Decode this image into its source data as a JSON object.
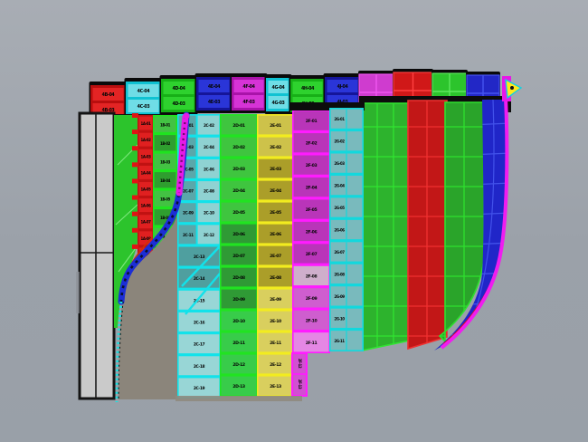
{
  "viewport": {
    "background_top": "#a8adb4",
    "background_bottom": "#99a0a8",
    "description": "3D CAD viewport showing a curved hull surface split into colored plate strips with panel ID labels"
  },
  "colors": {
    "red": "#e01515",
    "red_dark": "#c01212",
    "cyan_border": "#12e2ea",
    "cyan_cell": "#8fd2d2",
    "teal_cell": "#5aa7aa",
    "green_border": "#21e321",
    "green_cell": "#3fc53f",
    "green_dark": "#2f9a35",
    "blue": "#2026c8",
    "blue_line": "#4252ea",
    "magenta": "#ff1cff",
    "magenta_cell": "#b935b9",
    "yellow_border": "#f2ec1f",
    "yellow_cell": "#cdc24a",
    "olive_cell": "#ab9e29",
    "slab_fill": "#cacaca",
    "shadow_fill": "#8b857b",
    "cap_black": "#0a0a0a",
    "curve_blue": "#1c2ed6",
    "curve_magenta": "#e61ae6",
    "edge_cyan": "#19e2e2",
    "flag_yellow": "#ffe81a"
  },
  "top_band": {
    "panels": [
      {
        "color": "red",
        "labels": [
          "4B-04",
          "4B-03"
        ]
      },
      {
        "color": "cyan",
        "labels": [
          "4C-04",
          "4C-03"
        ]
      },
      {
        "color": "green",
        "labels": [
          "4D-04",
          "4D-03"
        ]
      },
      {
        "color": "blue",
        "labels": [
          "4E-04",
          "4E-03"
        ]
      },
      {
        "color": "magenta",
        "labels": [
          "4F-04",
          "4F-03"
        ]
      },
      {
        "color": "cyan",
        "labels": [
          "4G-04",
          "4G-03"
        ]
      },
      {
        "color": "green",
        "labels": [
          "4H-04",
          "4H-03"
        ]
      },
      {
        "color": "blue",
        "labels": [
          "4J-04",
          "4J-03"
        ]
      }
    ],
    "grid_panels": [
      "magenta",
      "red",
      "green",
      "blue"
    ]
  },
  "strips": {
    "red": {
      "labels": [
        "1A-01",
        "1A-02",
        "1A-03",
        "1A-04",
        "1A-05",
        "1A-06",
        "1A-07",
        "1A-08",
        "1A-09"
      ]
    },
    "green_left": {
      "labels": [
        "1B-01",
        "1B-02",
        "1B-03",
        "1B-04",
        "1B-05",
        "1B-06",
        "1B-07",
        "1B-08",
        "1B-09",
        "1B-10"
      ]
    },
    "cyan": {
      "labels": [
        "2C-01",
        "2C-02",
        "2C-03",
        "2C-04",
        "2C-05",
        "2C-06",
        "2C-07",
        "2C-08",
        "2C-09",
        "2C-10",
        "2C-11",
        "2C-12",
        "2C-13",
        "2C-14",
        "2C-15",
        "2C-16",
        "2C-17",
        "2C-18",
        "2C-19"
      ]
    },
    "green": {
      "labels": [
        "2D-01",
        "2D-02",
        "2D-03",
        "2D-04",
        "2D-05",
        "2D-06",
        "2D-07",
        "2D-08",
        "2D-09",
        "2D-10",
        "2D-11",
        "2D-12",
        "2D-13"
      ]
    },
    "yellow": {
      "labels": [
        "2E-01",
        "2E-02",
        "2E-03",
        "2E-04",
        "2E-05",
        "2E-06",
        "2E-07",
        "2E-08",
        "2E-09",
        "2E-10",
        "2E-11",
        "2E-12",
        "2E-13"
      ]
    },
    "magenta": {
      "labels": [
        "2F-01",
        "2F-02",
        "2F-03",
        "2F-04",
        "2F-05",
        "2F-06",
        "2F-07",
        "2F-08",
        "2F-09",
        "2F-10",
        "2F-11"
      ],
      "tab_labels": [
        "2F-12",
        "2F-13"
      ]
    },
    "teal": {
      "labels": [
        "2G-01",
        "2G-02",
        "2G-03",
        "2G-04",
        "2G-05",
        "2G-06",
        "2G-07",
        "2G-08",
        "2G-09",
        "2G-10",
        "2G-11"
      ]
    }
  }
}
